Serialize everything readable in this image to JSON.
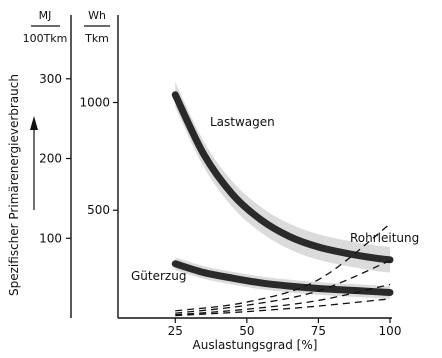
{
  "chart_data": {
    "type": "line",
    "ylabel": "Spezifischer Primärenergieverbrauch",
    "xlabel": "Auslastungsgrad [%]",
    "units_left": {
      "numer": "MJ",
      "denom": "100Tkm"
    },
    "units_right": {
      "numer": "Wh",
      "denom": "Tkm"
    },
    "x_ticks": [
      25,
      50,
      75,
      100
    ],
    "y_ticks_mj": [
      100,
      200,
      300
    ],
    "y_ticks_wh": [
      500,
      1000
    ],
    "xlim": [
      5,
      100
    ],
    "ylim_mj": [
      0,
      380
    ],
    "series": [
      {
        "name": "Lastwagen",
        "style": "heavy-with-band",
        "x": [
          25,
          35,
          45,
          55,
          65,
          75,
          85,
          95,
          100
        ],
        "y": [
          280,
          205,
          155,
          123,
          102,
          89,
          81,
          75,
          73
        ],
        "band": 16
      },
      {
        "name": "Güterzug",
        "style": "heavy-with-band",
        "x": [
          25,
          35,
          45,
          55,
          65,
          75,
          85,
          95,
          100
        ],
        "y": [
          68,
          57,
          50,
          44,
          40,
          37,
          35,
          33,
          32
        ],
        "band": 8
      },
      {
        "name": "Rohrleitung",
        "style": "dashed-group",
        "lines": [
          {
            "x": [
              25,
              50,
              75,
              100
            ],
            "y": [
              9,
              20,
              48,
              118
            ]
          },
          {
            "x": [
              25,
              50,
              75,
              100
            ],
            "y": [
              6,
              16,
              34,
              72
            ]
          },
          {
            "x": [
              25,
              50,
              75,
              100
            ],
            "y": [
              4,
              11,
              22,
              42
            ]
          },
          {
            "x": [
              25,
              50,
              75,
              100
            ],
            "y": [
              3,
              8,
              15,
              24
            ]
          }
        ]
      }
    ]
  }
}
